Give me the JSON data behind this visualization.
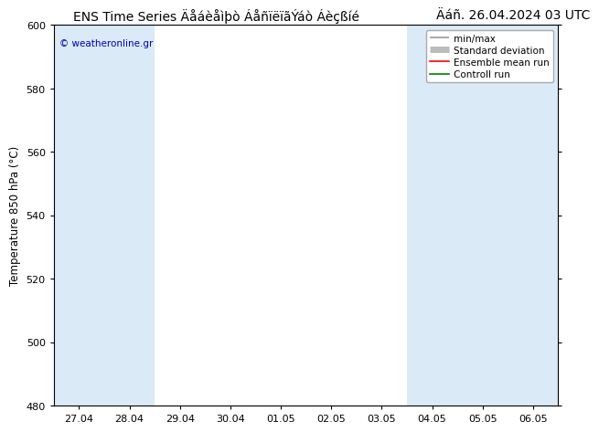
{
  "title_left": "ENS Time Series Äåáèåìþò ÁåñïëïãÝáò Áèçßíé",
  "title_right": "Äáñ. 26.04.2024 03 UTC",
  "ylabel": "Temperature 850 hPa (°C)",
  "ylim": [
    480,
    600
  ],
  "yticks": [
    480,
    500,
    520,
    540,
    560,
    580,
    600
  ],
  "xtick_labels": [
    "27.04",
    "28.04",
    "29.04",
    "30.04",
    "01.05",
    "02.05",
    "03.05",
    "04.05",
    "05.05",
    "06.05"
  ],
  "watermark": "© weatheronline.gr",
  "watermark_color": "#0000bb",
  "legend_entries": [
    "min/max",
    "Standard deviation",
    "Ensemble mean run",
    "Controll run"
  ],
  "legend_line_colors": [
    "#999999",
    "#bbbbbb",
    "#ff0000",
    "#008000"
  ],
  "bg_color": "#ffffff",
  "plot_bg_color": "#ffffff",
  "band_color": "#daeaf7",
  "title_fontsize": 10,
  "axis_fontsize": 8.5,
  "tick_fontsize": 8,
  "legend_fontsize": 7.5
}
